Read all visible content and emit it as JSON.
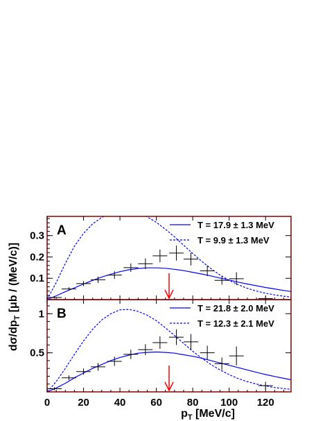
{
  "figure": {
    "ylabel_main": "dσ/dp",
    "ylabel_sub": "T",
    "ylabel_unit": " [μb / (MeV/c)]",
    "xlabel_main": "p",
    "xlabel_sub": "T",
    "xlabel_unit": " [MeV/c]",
    "colors": {
      "frame": "#8b0000",
      "curve": "#0000ff",
      "data": "#000000",
      "arrow": "#ff0000"
    }
  },
  "chart_data": [
    {
      "type": "scatter",
      "panel_label": "A",
      "xlim": [
        0,
        134
      ],
      "ylim": [
        0,
        0.39
      ],
      "xticks": [
        0,
        20,
        40,
        60,
        80,
        100,
        120
      ],
      "yticks": [
        0.1,
        0.2,
        0.3
      ],
      "ytick_labels": [
        "0.1",
        "0.2",
        "0.3"
      ],
      "grid": false,
      "legend_position": "top-right",
      "arrow_x": 67,
      "series": [
        {
          "name": "data",
          "x": [
            4,
            12,
            20,
            28,
            37,
            46,
            54,
            62,
            71,
            79,
            88,
            96,
            104,
            120
          ],
          "y": [
            0.01,
            0.05,
            0.075,
            0.093,
            0.115,
            0.15,
            0.168,
            0.205,
            0.218,
            0.19,
            0.135,
            0.09,
            0.098,
            0.005
          ],
          "yerr": [
            0.005,
            0.008,
            0.012,
            0.015,
            0.018,
            0.02,
            0.025,
            0.03,
            0.035,
            0.03,
            0.025,
            0.02,
            0.03,
            0.01
          ],
          "xerr": 4
        },
        {
          "name": "T = 17.9 ± 1.3 MeV",
          "style": "solid",
          "x": [
            0,
            5,
            10,
            15,
            20,
            25,
            30,
            35,
            40,
            45,
            50,
            55,
            60,
            65,
            70,
            75,
            80,
            85,
            90,
            95,
            100,
            105,
            110,
            115,
            120,
            125,
            130,
            134
          ],
          "y": [
            0.0,
            0.018,
            0.037,
            0.055,
            0.073,
            0.09,
            0.106,
            0.119,
            0.131,
            0.14,
            0.146,
            0.149,
            0.149,
            0.147,
            0.142,
            0.136,
            0.128,
            0.12,
            0.111,
            0.101,
            0.092,
            0.082,
            0.073,
            0.065,
            0.057,
            0.05,
            0.043,
            0.038
          ]
        },
        {
          "name": "T =  9.9 ± 1.3 MeV",
          "style": "dashed",
          "x": [
            0,
            5,
            10,
            15,
            20,
            25,
            30,
            35,
            40,
            45,
            50,
            55,
            60,
            65,
            70,
            75,
            80,
            85,
            90,
            95,
            100,
            105,
            110,
            115,
            120,
            125,
            130,
            134
          ],
          "y": [
            0.0,
            0.08,
            0.17,
            0.25,
            0.31,
            0.355,
            0.385,
            0.405,
            0.414,
            0.414,
            0.405,
            0.388,
            0.362,
            0.33,
            0.294,
            0.255,
            0.216,
            0.179,
            0.145,
            0.115,
            0.09,
            0.07,
            0.053,
            0.04,
            0.03,
            0.022,
            0.016,
            0.012
          ]
        }
      ]
    },
    {
      "type": "scatter",
      "panel_label": "B",
      "xlim": [
        0,
        134
      ],
      "ylim": [
        0,
        1.18
      ],
      "xticks": [
        0,
        20,
        40,
        60,
        80,
        100,
        120
      ],
      "xtick_labels": [
        "0",
        "20",
        "40",
        "60",
        "80",
        "100",
        "120"
      ],
      "yticks": [
        0.5,
        1.0
      ],
      "ytick_labels": [
        "0.5",
        "1"
      ],
      "grid": false,
      "legend_position": "top-right",
      "arrow_x": 67,
      "series": [
        {
          "name": "data",
          "x": [
            4,
            12,
            20,
            28,
            37,
            46,
            54,
            62,
            71,
            79,
            88,
            96,
            104,
            120
          ],
          "y": [
            0.04,
            0.18,
            0.26,
            0.32,
            0.39,
            0.48,
            0.54,
            0.63,
            0.7,
            0.64,
            0.5,
            0.36,
            0.46,
            0.08
          ],
          "yerr": [
            0.02,
            0.03,
            0.04,
            0.05,
            0.06,
            0.06,
            0.07,
            0.08,
            0.1,
            0.1,
            0.09,
            0.08,
            0.12,
            0.05
          ],
          "xerr": 4
        },
        {
          "name": "T = 21.8 ± 2.0 MeV",
          "style": "solid",
          "x": [
            0,
            5,
            10,
            15,
            20,
            25,
            30,
            35,
            40,
            45,
            50,
            55,
            60,
            65,
            70,
            75,
            80,
            85,
            90,
            95,
            100,
            105,
            110,
            115,
            120,
            125,
            130,
            134
          ],
          "y": [
            0.0,
            0.05,
            0.11,
            0.18,
            0.24,
            0.3,
            0.35,
            0.4,
            0.44,
            0.47,
            0.495,
            0.505,
            0.51,
            0.505,
            0.495,
            0.475,
            0.455,
            0.43,
            0.4,
            0.37,
            0.34,
            0.31,
            0.28,
            0.25,
            0.222,
            0.197,
            0.173,
            0.155
          ]
        },
        {
          "name": "T = 12.3 ± 2.1 MeV",
          "style": "dashed",
          "x": [
            0,
            5,
            10,
            15,
            20,
            25,
            30,
            35,
            40,
            45,
            50,
            55,
            60,
            65,
            70,
            75,
            80,
            85,
            90,
            95,
            100,
            105,
            110,
            115,
            120,
            125,
            130,
            134
          ],
          "y": [
            0.0,
            0.13,
            0.3,
            0.48,
            0.65,
            0.8,
            0.92,
            1.0,
            1.05,
            1.055,
            1.03,
            0.98,
            0.91,
            0.82,
            0.72,
            0.62,
            0.52,
            0.43,
            0.35,
            0.28,
            0.22,
            0.17,
            0.13,
            0.1,
            0.075,
            0.056,
            0.042,
            0.033
          ]
        }
      ]
    }
  ]
}
